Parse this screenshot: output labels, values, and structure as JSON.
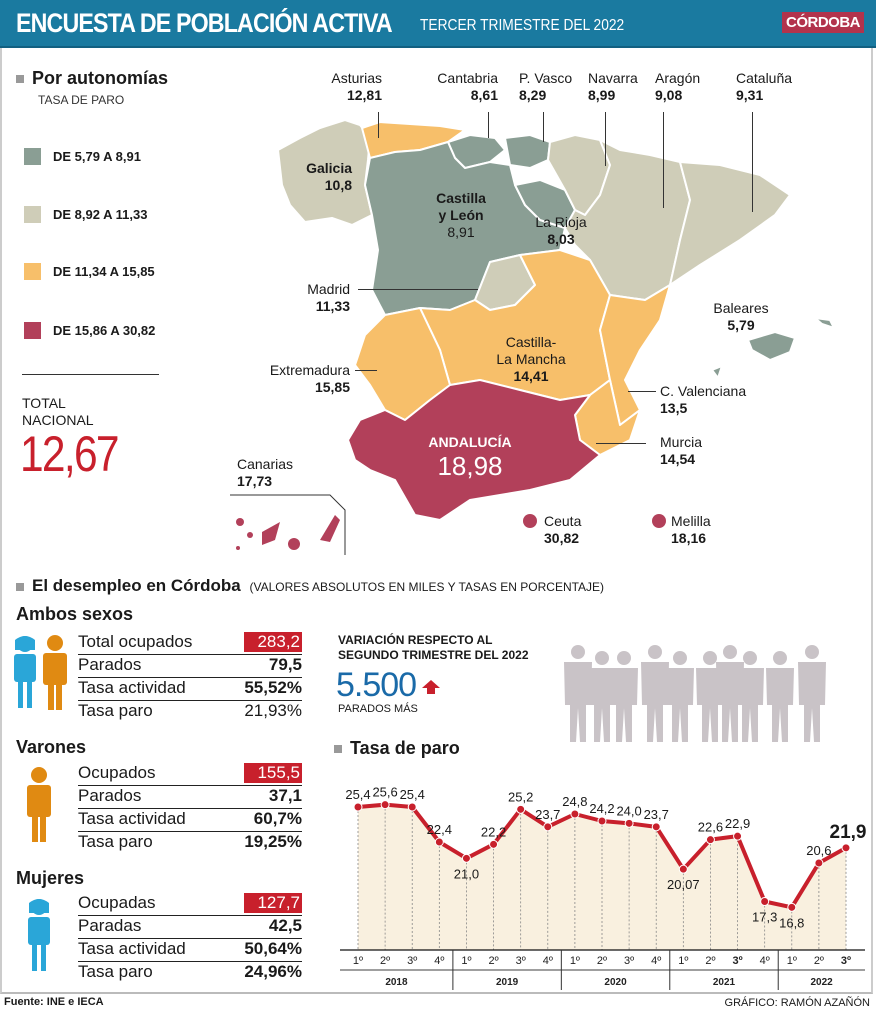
{
  "header": {
    "title": "ENCUESTA DE POBLACIÓN ACTIVA",
    "subtitle": "TERCER TRIMESTRE DEL 2022",
    "brand": "CÓRDOBA",
    "colors": {
      "bar": "#1a7aa0",
      "brand": "#b2334c"
    }
  },
  "autonomias": {
    "title": "Por autonomías",
    "subtitle": "TASA DE PARO",
    "legend": [
      {
        "label": "DE 5,79 A 8,91",
        "color": "#8a9e94"
      },
      {
        "label": "DE 8,92 A 11,33",
        "color": "#cfcdb8"
      },
      {
        "label": "DE 11,34 A 15,85",
        "color": "#f7bf6a"
      },
      {
        "label": "DE 15,86 A 30,82",
        "color": "#b2405a"
      }
    ],
    "total_label_1": "TOTAL",
    "total_label_2": "NACIONAL",
    "total_value": "12,67",
    "regions": [
      {
        "name": "Asturias",
        "value": "12,81"
      },
      {
        "name": "Cantabria",
        "value": "8,61"
      },
      {
        "name": "P. Vasco",
        "value": "8,29"
      },
      {
        "name": "Navarra",
        "value": "8,99"
      },
      {
        "name": "Aragón",
        "value": "9,08"
      },
      {
        "name": "Cataluña",
        "value": "9,31"
      },
      {
        "name": "Galicia",
        "value": "10,8"
      },
      {
        "name": "Castilla y León",
        "name_1": "Castilla",
        "name_2": "y León",
        "value": "8,91"
      },
      {
        "name": "La Rioja",
        "value": "8,03"
      },
      {
        "name": "Madrid",
        "value": "11,33"
      },
      {
        "name": "Baleares",
        "value": "5,79"
      },
      {
        "name": "Extremadura",
        "value": "15,85"
      },
      {
        "name": "Castilla-La Mancha",
        "name_1": "Castilla-",
        "name_2": "La Mancha",
        "value": "14,41"
      },
      {
        "name": "C. Valenciana",
        "value": "13,5"
      },
      {
        "name": "ANDALUCÍA",
        "value": "18,98"
      },
      {
        "name": "Murcia",
        "value": "14,54"
      },
      {
        "name": "Canarias",
        "value": "17,73"
      },
      {
        "name": "Ceuta",
        "value": "30,82"
      },
      {
        "name": "Melilla",
        "value": "18,16"
      }
    ]
  },
  "cordoba": {
    "title": "El desempleo en Córdoba",
    "note": "(VALORES ABSOLUTOS EN MILES Y TASAS EN PORCENTAJE)",
    "groups": [
      {
        "title": "Ambos sexos",
        "rows": [
          {
            "label": "Total ocupados",
            "value": "283,2"
          },
          {
            "label": "Parados",
            "value": "79,5"
          },
          {
            "label": "Tasa actividad",
            "value": "55,52%"
          },
          {
            "label": "Tasa paro",
            "value": "21,93%"
          }
        ]
      },
      {
        "title": "Varones",
        "rows": [
          {
            "label": "Ocupados",
            "value": "155,5"
          },
          {
            "label": "Parados",
            "value": "37,1"
          },
          {
            "label": "Tasa actividad",
            "value": "60,7%"
          },
          {
            "label": "Tasa paro",
            "value": "19,25%"
          }
        ]
      },
      {
        "title": "Mujeres",
        "rows": [
          {
            "label": "Ocupadas",
            "value": "127,7"
          },
          {
            "label": "Paradas",
            "value": "42,5"
          },
          {
            "label": "Tasa actividad",
            "value": "50,64%"
          },
          {
            "label": "Tasa paro",
            "value": "24,96%"
          }
        ]
      }
    ],
    "variation": {
      "title_1": "VARIACIÓN RESPECTO AL",
      "title_2": "SEGUNDO TRIMESTRE DEL 2022",
      "value": "5.500",
      "caption": "PARADOS MÁS"
    }
  },
  "chart_data": {
    "type": "line",
    "title": "Tasa de paro",
    "xlabel": "",
    "ylabel": "",
    "x": [
      "2018-1",
      "2018-2",
      "2018-3",
      "2018-4",
      "2019-1",
      "2019-2",
      "2019-3",
      "2019-4",
      "2020-1",
      "2020-2",
      "2020-3",
      "2020-4",
      "2021-1",
      "2021-2",
      "2021-3",
      "2021-4",
      "2022-1",
      "2022-2",
      "2022-3"
    ],
    "tick_labels": [
      "1º",
      "2º",
      "3º",
      "4º",
      "1º",
      "2º",
      "3º",
      "4º",
      "1º",
      "2º",
      "3º",
      "4º",
      "1º",
      "2º",
      "3º",
      "4º",
      "1º",
      "2º",
      "3º"
    ],
    "years": [
      "2018",
      "2019",
      "2020",
      "2021",
      "2022"
    ],
    "values": [
      25.4,
      25.6,
      25.4,
      22.4,
      21.0,
      22.2,
      25.2,
      23.7,
      24.8,
      24.2,
      24.0,
      23.7,
      20.07,
      22.6,
      22.9,
      17.3,
      16.8,
      20.6,
      21.9
    ],
    "labels": [
      "25,4",
      "25,6",
      "25,4",
      "22,4",
      "21,0",
      "22,2",
      "25,2",
      "23,7",
      "24,8",
      "24,2",
      "24,0",
      "23,7",
      "20,07",
      "22,6",
      "22,9",
      "17,3",
      "16,8",
      "20,6",
      "21,9"
    ],
    "label_below": [
      false,
      false,
      false,
      false,
      true,
      false,
      false,
      false,
      false,
      false,
      false,
      false,
      true,
      false,
      false,
      true,
      true,
      false,
      false
    ],
    "ylim": [
      0,
      27
    ],
    "grid": "vertical-dashed",
    "line_color": "#c8202c",
    "fill_color": "#f9f0df"
  },
  "footer": {
    "source": "Fuente: INE e IECA",
    "credit": "GRÁFICO: RAMÓN AZAÑÓN"
  }
}
